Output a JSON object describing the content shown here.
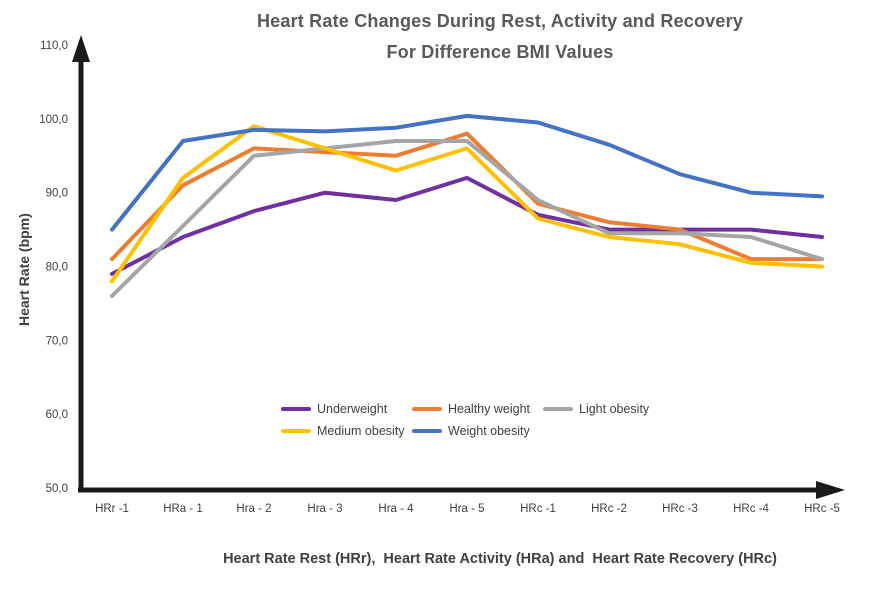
{
  "chart_data": {
    "type": "line",
    "title_line1": "Heart Rate Changes During Rest, Activity and Recovery",
    "title_line2": "For Difference BMI Values",
    "ylabel": "Heart Rate (bpm)",
    "xlabel": "Heart Rate Rest (HRr),  Heart Rate Activity (HRa) and  Heart Rate Recovery (HRc)",
    "categories": [
      "HRr -1",
      "HRa - 1",
      "Hra - 2",
      "Hra - 3",
      "Hra - 4",
      "Hra - 5",
      "HRc -1",
      "HRc -2",
      "HRc -3",
      "HRc -4",
      "HRc -5"
    ],
    "y_ticks": [
      "110,0",
      "100,0",
      "90,0",
      "80,0",
      "70,0",
      "60,0",
      "50,0"
    ],
    "ylim": [
      50,
      110
    ],
    "grid": false,
    "legend_position": "bottom-center-inside",
    "axis_color": "#1a1a1a",
    "tick_label_color": "#404040",
    "series": [
      {
        "name": "Underweight",
        "color": "#7030A0",
        "values": [
          79,
          84,
          87.5,
          90,
          89,
          92,
          87,
          85,
          85,
          85,
          84
        ]
      },
      {
        "name": "Healthy weight",
        "color": "#ED7D31",
        "values": [
          81,
          91,
          96,
          95.5,
          95,
          98,
          88.5,
          86,
          85,
          81,
          81
        ]
      },
      {
        "name": "Light obesity",
        "color": "#A5A5A5",
        "values": [
          76,
          85.5,
          95,
          96,
          97,
          97,
          89,
          84.5,
          84.5,
          84,
          81
        ]
      },
      {
        "name": "Medium obesity",
        "color": "#FFC000",
        "values": [
          78,
          92,
          99,
          96,
          93,
          96,
          86.5,
          84,
          83,
          80.5,
          80
        ]
      },
      {
        "name": "Weight obesity",
        "color": "#4472C4",
        "values": [
          85,
          97,
          98.5,
          98.3,
          98.8,
          100.4,
          99.5,
          96.5,
          92.5,
          90,
          89.5
        ]
      }
    ]
  }
}
